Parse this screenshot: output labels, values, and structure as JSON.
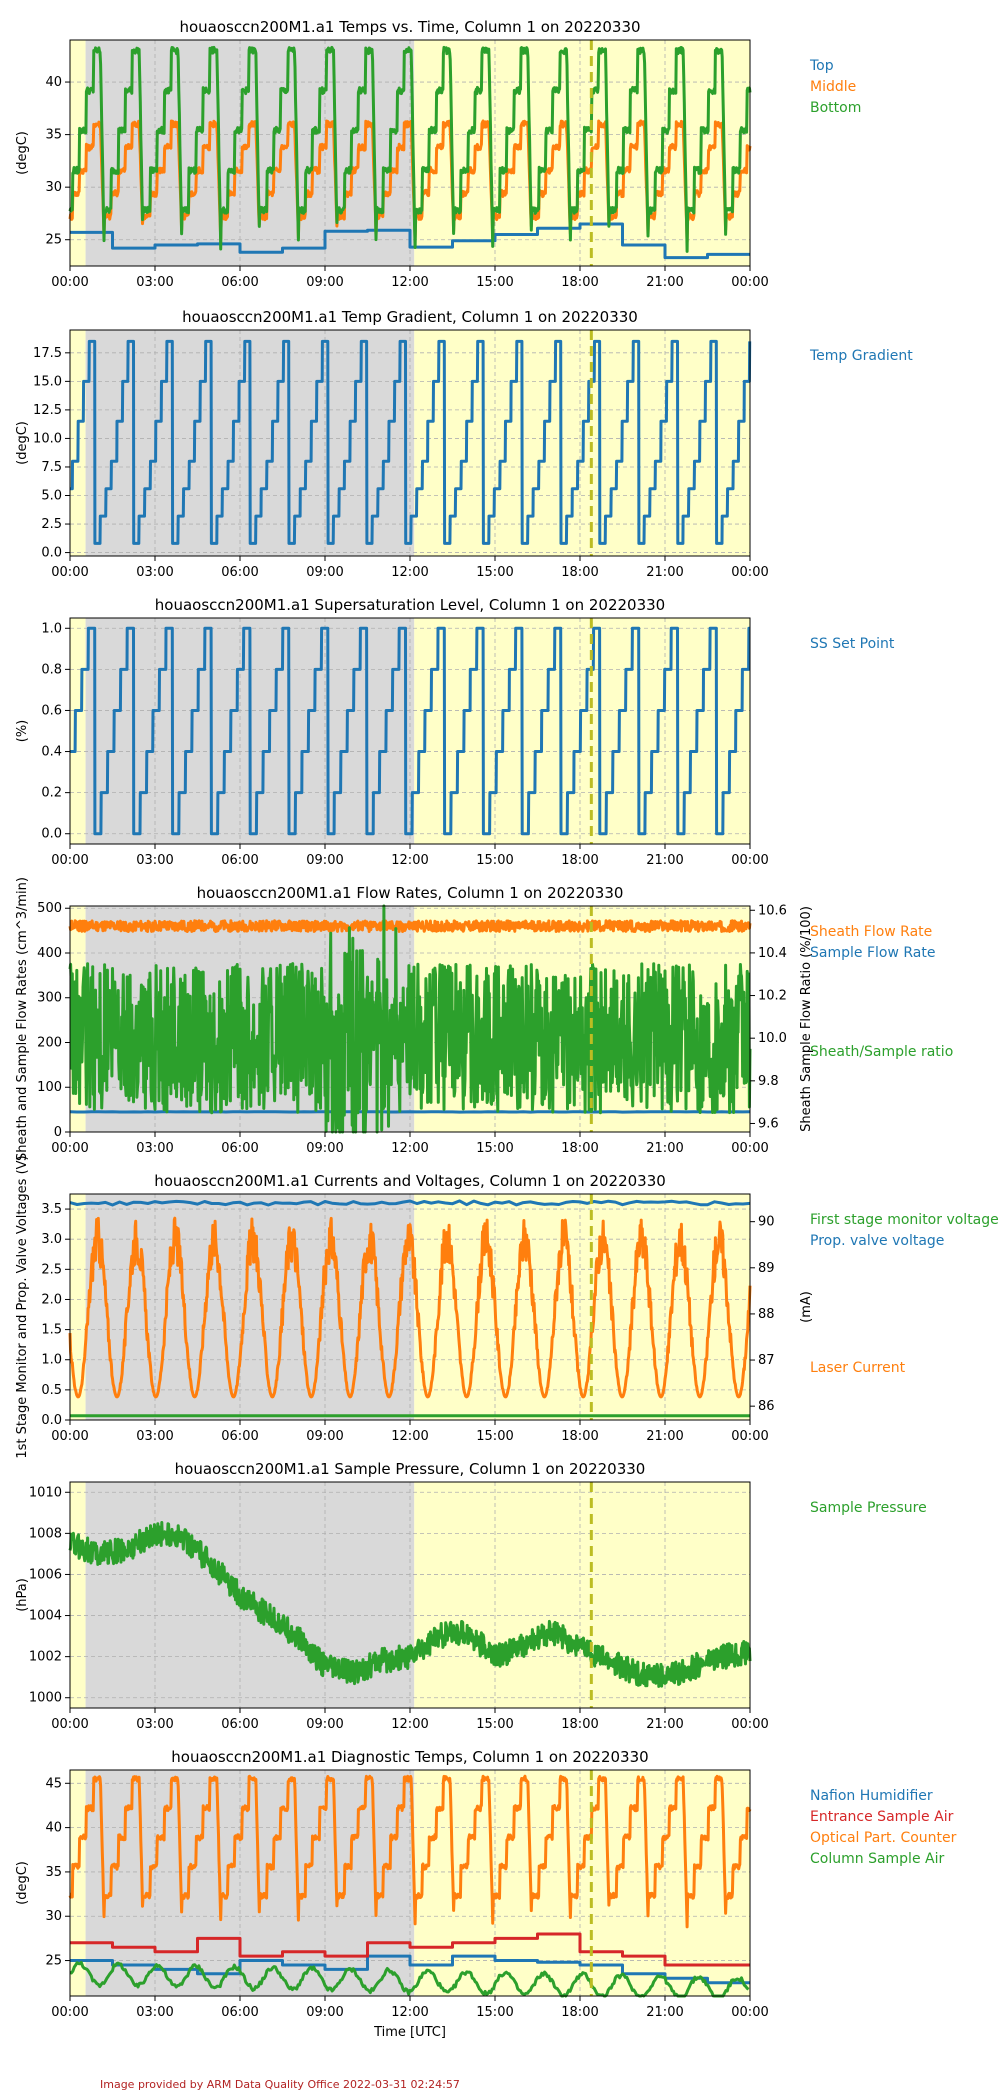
{
  "footer": "Image provided by ARM Data Quality Office 2022-03-31 02:24:57",
  "colors": {
    "blue": "#1f77b4",
    "orange": "#ff7f0e",
    "green": "#2ca02c",
    "red": "#d62728",
    "night": "#d9d9d9",
    "day": "#ffffc8",
    "marker": "#bcbd22"
  },
  "shading": {
    "night_until_hour": 0.55,
    "day_from_hour": 12.15
  },
  "marker_hour": 18.4,
  "x_ticks": [
    "00:00",
    "03:00",
    "06:00",
    "09:00",
    "12:00",
    "15:00",
    "18:00",
    "21:00",
    "00:00"
  ],
  "x_axis_label": "Time [UTC]",
  "chart_data": [
    {
      "type": "line",
      "title": "houaosccn200M1.a1 Temps vs. Time, Column 1 on 20220330",
      "ylabel": "(degC)",
      "ylim": [
        22.5,
        44
      ],
      "yticks": [
        25,
        30,
        35,
        40
      ],
      "grid": true,
      "legend_placement": "right",
      "series": [
        {
          "name": "Top",
          "color": "#1f77b4",
          "pattern": "steps",
          "values": [
            25.7,
            24.2,
            24.5,
            24.6,
            23.8,
            24.2,
            25.8,
            25.9,
            24.3,
            24.9,
            25.5,
            26.1,
            26.5,
            24.5,
            23.3,
            23.6
          ]
        },
        {
          "name": "Middle",
          "color": "#ff7f0e",
          "pattern": "sawtooth",
          "min": 25,
          "max": 36
        },
        {
          "name": "Bottom",
          "color": "#2ca02c",
          "pattern": "sawtooth",
          "min": 24,
          "max": 43
        }
      ]
    },
    {
      "type": "line",
      "title": "houaosccn200M1.a1 Temp Gradient, Column 1 on 20220330",
      "ylabel": "(degC)",
      "ylim": [
        -0.3,
        19.5
      ],
      "yticks": [
        "0.0",
        "2.5",
        "5.0",
        "7.5",
        "10.0",
        "12.5",
        "15.0",
        "17.5"
      ],
      "grid": true,
      "legend_placement": "right",
      "series": [
        {
          "name": "Temp Gradient",
          "color": "#1f77b4",
          "pattern": "staircase",
          "levels": [
            0.8,
            3.2,
            5.6,
            8.0,
            11.5,
            15.0,
            18.5
          ]
        }
      ]
    },
    {
      "type": "line",
      "title": "houaosccn200M1.a1 Supersaturation Level, Column 1 on 20220330",
      "ylabel": "(%)",
      "ylim": [
        -0.05,
        1.05
      ],
      "yticks": [
        "0.0",
        "0.2",
        "0.4",
        "0.6",
        "0.8",
        "1.0"
      ],
      "grid": true,
      "legend_placement": "right",
      "series": [
        {
          "name": "SS Set Point",
          "color": "#1f77b4",
          "pattern": "staircase",
          "levels": [
            0.0,
            0.2,
            0.4,
            0.6,
            0.8,
            1.0
          ]
        }
      ]
    },
    {
      "type": "line",
      "title": "houaosccn200M1.a1 Flow Rates, Column 1 on 20220330",
      "ylabel": "Sheath and Sample Flow Rates (cm^3/min)",
      "ylabel_right": "Sheath Sample Flow Ratio (%/100)",
      "ylim": [
        0,
        505
      ],
      "yticks": [
        0,
        100,
        200,
        300,
        400,
        500
      ],
      "ylim_right": [
        9.56,
        10.62
      ],
      "yticks_right": [
        "9.6",
        "9.8",
        "10.0",
        "10.2",
        "10.4",
        "10.6"
      ],
      "grid": true,
      "legend_placement": "right",
      "series": [
        {
          "name": "Sheath Flow Rate",
          "color": "#ff7f0e",
          "pattern": "noise",
          "mean": 460,
          "spread": 12
        },
        {
          "name": "Sample Flow Rate",
          "color": "#1f77b4",
          "pattern": "flat",
          "mean": 45
        },
        {
          "name": "Sheath/Sample ratio",
          "color": "#2ca02c",
          "pattern": "noise",
          "axis": "right",
          "mean": 10.0,
          "spread": 0.35
        }
      ]
    },
    {
      "type": "line",
      "title": "houaosccn200M1.a1 Currents and Voltages, Column 1 on 20220330",
      "ylabel": "1st Stage Monitor and Prop. Valve Voltages (V)",
      "ylabel_right": "(mA)",
      "ylim": [
        0,
        3.75
      ],
      "yticks": [
        "0.0",
        "0.5",
        "1.0",
        "1.5",
        "2.0",
        "2.5",
        "3.0",
        "3.5"
      ],
      "ylim_right": [
        85.7,
        90.6
      ],
      "yticks_right": [
        "86",
        "87",
        "88",
        "89",
        "90"
      ],
      "grid": true,
      "legend_placement": "right",
      "series": [
        {
          "name": "First stage monitor voltage",
          "color": "#2ca02c",
          "pattern": "flat",
          "mean": 0.07
        },
        {
          "name": "Prop. valve voltage",
          "color": "#1f77b4",
          "pattern": "flat",
          "mean": 3.6
        },
        {
          "name": "Laser Current",
          "color": "#ff7f0e",
          "pattern": "oscillation",
          "axis": "right",
          "min": 86.2,
          "max": 90.1
        }
      ]
    },
    {
      "type": "line",
      "title": "houaosccn200M1.a1 Sample Pressure, Column 1 on 20220330",
      "ylabel": "(hPa)",
      "ylim": [
        999.5,
        1010.5
      ],
      "yticks": [
        1000,
        1002,
        1004,
        1006,
        1008,
        1010
      ],
      "grid": true,
      "legend_placement": "right",
      "series": [
        {
          "name": "Sample Pressure",
          "color": "#2ca02c",
          "pattern": "noise_trend",
          "hours": [
            0,
            1,
            2,
            3,
            4,
            5,
            6,
            7,
            8,
            9,
            10,
            11,
            12,
            13,
            14,
            15,
            16,
            17,
            18,
            19,
            20,
            21,
            22,
            23,
            24
          ],
          "values": [
            1007.5,
            1007.0,
            1007.2,
            1008.0,
            1007.8,
            1006.5,
            1005.0,
            1004.0,
            1003.0,
            1001.5,
            1001.2,
            1001.8,
            1002.0,
            1003.0,
            1003.2,
            1002.0,
            1002.5,
            1003.2,
            1002.5,
            1001.8,
            1001.2,
            1001.0,
            1001.5,
            1002.0,
            1002.2
          ],
          "spread": 1.2
        }
      ]
    },
    {
      "type": "line",
      "title": "houaosccn200M1.a1 Diagnostic Temps, Column 1 on 20220330",
      "ylabel": "(degC)",
      "ylim": [
        21,
        46.5
      ],
      "yticks": [
        25,
        30,
        35,
        40,
        45
      ],
      "grid": true,
      "legend_placement": "right",
      "series": [
        {
          "name": "Nafion Humidifier",
          "color": "#1f77b4",
          "pattern": "steps",
          "values": [
            25.0,
            24.5,
            24.0,
            23.5,
            25.0,
            24.5,
            24.0,
            25.5,
            24.5,
            25.5,
            25.0,
            24.8,
            24.5,
            23.5,
            23.0,
            22.5
          ]
        },
        {
          "name": "Entrance Sample Air",
          "color": "#d62728",
          "pattern": "steps",
          "values": [
            27.0,
            26.5,
            26.0,
            27.5,
            25.5,
            26.0,
            25.5,
            27.0,
            26.5,
            27.0,
            27.5,
            28.0,
            26.0,
            25.5,
            24.5,
            24.5
          ]
        },
        {
          "name": "Optical Part. Counter",
          "color": "#ff7f0e",
          "pattern": "sawtooth",
          "min": 29,
          "max": 45.5
        },
        {
          "name": "Column Sample Air",
          "color": "#2ca02c",
          "pattern": "wavy",
          "mean": 23.5,
          "spread": 1.5
        }
      ]
    }
  ]
}
